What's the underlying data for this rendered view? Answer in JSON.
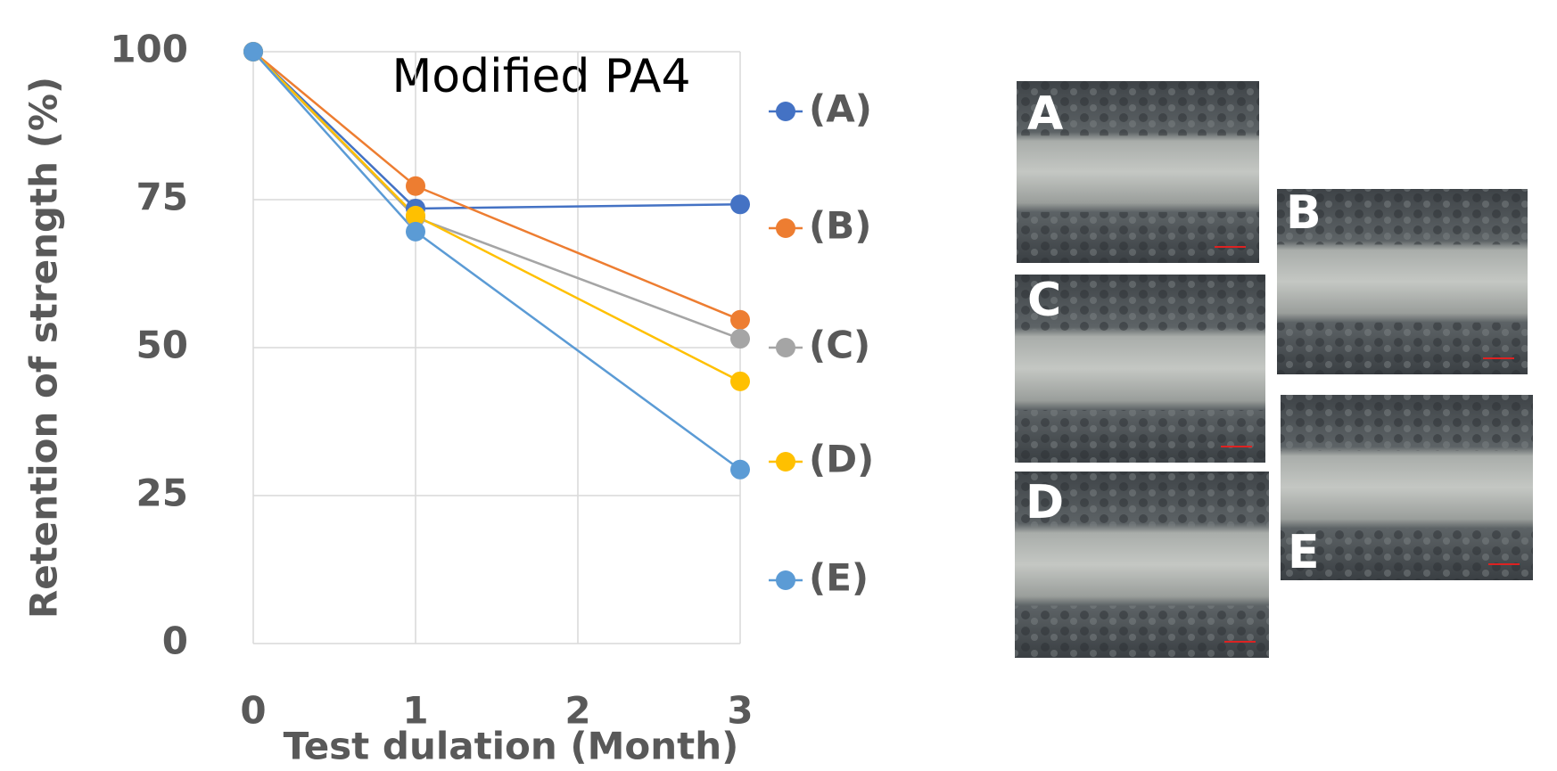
{
  "chart_data": {
    "type": "line",
    "title": "Modified PA4",
    "x_label": "Test dulation (Month)",
    "y_label": "Retention of strength (%)",
    "x": [
      0,
      1,
      3
    ],
    "series": [
      {
        "name": "(A)",
        "color": "#4472c4",
        "values": [
          100,
          73.5,
          74.2
        ]
      },
      {
        "name": "(B)",
        "color": "#ed7d31",
        "values": [
          100,
          77.3,
          54.7
        ]
      },
      {
        "name": "(C)",
        "color": "#a5a5a5",
        "values": [
          100,
          72,
          51.5
        ]
      },
      {
        "name": "(D)",
        "color": "#ffc000",
        "values": [
          100,
          72.3,
          44.3
        ]
      },
      {
        "name": "(E)",
        "color": "#5b9bd5",
        "values": [
          100,
          69.6,
          29.4
        ]
      }
    ],
    "xlim": [
      0,
      3
    ],
    "xticks": [
      0,
      1,
      2,
      3
    ],
    "ylim": [
      0,
      100
    ],
    "yticks": [
      0,
      25,
      50,
      75,
      100
    ],
    "grid": true,
    "legend": "right"
  },
  "image_labels": [
    "A",
    "B",
    "C",
    "D",
    "E"
  ]
}
